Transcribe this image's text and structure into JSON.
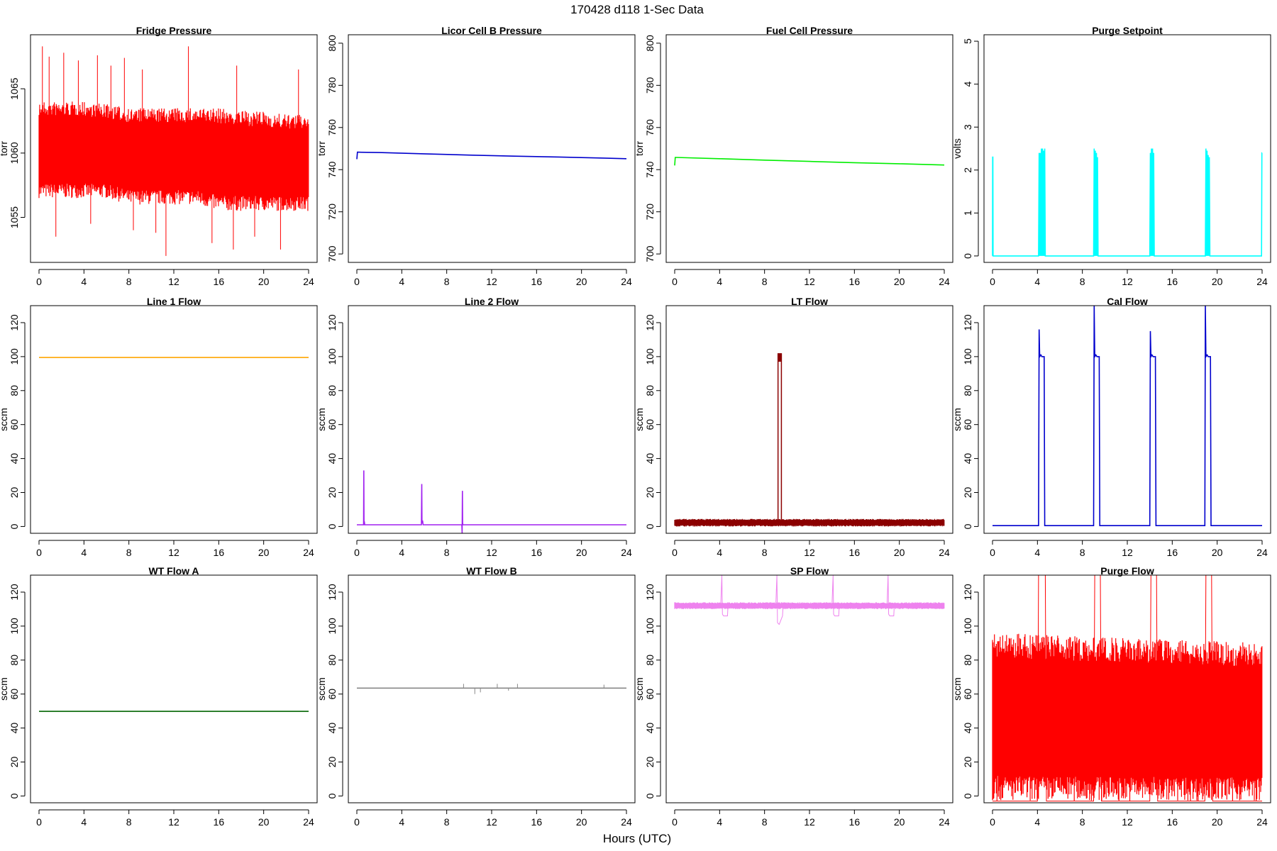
{
  "header": {
    "title": "170428    d118    1-Sec Data"
  },
  "footer": {
    "xlabel": "Hours (UTC)"
  },
  "chart_data": [
    {
      "type": "line",
      "title": "Fridge Pressure",
      "ylabel": "torr",
      "color": "#ff0000",
      "xlim": [
        0,
        24
      ],
      "ylim": [
        1051.5,
        1069.2
      ],
      "x_ticks": [
        0,
        4,
        8,
        12,
        16,
        20,
        24
      ],
      "y_ticks": [
        1055,
        1060,
        1065
      ],
      "x": [
        0,
        0.5,
        2,
        4,
        6,
        8,
        10,
        12,
        14,
        16,
        18,
        20,
        22,
        24
      ],
      "y": [
        1060,
        1060,
        1060,
        1060,
        1060,
        1059.5,
        1059.5,
        1059.5,
        1059.5,
        1059.5,
        1059.3,
        1059.3,
        1059.2,
        1059.2
      ],
      "band": {
        "low": [
          1056.5,
          1056.5,
          1056.5,
          1056.5,
          1056.5,
          1056,
          1056,
          1056,
          1056,
          1055.5,
          1055.5,
          1055.5,
          1055.5,
          1055.5
        ],
        "high": [
          1064,
          1064,
          1064,
          1064,
          1063.8,
          1063.5,
          1063.5,
          1063.5,
          1063.5,
          1063.5,
          1063.3,
          1063.2,
          1063,
          1063
        ]
      },
      "spikes": [
        [
          0.3,
          1068.3
        ],
        [
          0.9,
          1067.5
        ],
        [
          2.2,
          1067.8
        ],
        [
          3.5,
          1067.2
        ],
        [
          5.2,
          1067.6
        ],
        [
          6.4,
          1066.8
        ],
        [
          7.6,
          1067.4
        ],
        [
          9.2,
          1066.5
        ],
        [
          11.3,
          1052
        ],
        [
          13.3,
          1068.3
        ],
        [
          15.4,
          1053
        ],
        [
          17.3,
          1052.5
        ],
        [
          17.6,
          1066.8
        ],
        [
          21.5,
          1052.5
        ],
        [
          23.1,
          1066.5
        ],
        [
          1.5,
          1053.5
        ],
        [
          4.6,
          1054.5
        ],
        [
          8.4,
          1054
        ],
        [
          10.4,
          1053.8
        ],
        [
          19.2,
          1053.5
        ]
      ]
    },
    {
      "type": "line",
      "title": "Licor Cell B Pressure",
      "ylabel": "torr",
      "color": "#0000cd",
      "xlim": [
        0,
        24
      ],
      "ylim": [
        696,
        804
      ],
      "x_ticks": [
        0,
        4,
        8,
        12,
        16,
        20,
        24
      ],
      "y_ticks": [
        700,
        720,
        740,
        760,
        780,
        800
      ],
      "x": [
        0,
        0.05,
        0.15,
        2,
        6,
        10,
        14,
        18,
        22,
        24
      ],
      "y": [
        745,
        748.3,
        748.3,
        748.1,
        747.5,
        746.9,
        746.4,
        746,
        745.5,
        745.2
      ]
    },
    {
      "type": "line",
      "title": "Fuel Cell Pressure",
      "ylabel": "torr",
      "color": "#00ee00",
      "xlim": [
        0,
        24
      ],
      "ylim": [
        696,
        804
      ],
      "x_ticks": [
        0,
        4,
        8,
        12,
        16,
        20,
        24
      ],
      "y_ticks": [
        700,
        720,
        740,
        760,
        780,
        800
      ],
      "x": [
        0,
        0.05,
        0.15,
        4,
        8,
        12,
        16,
        20,
        24
      ],
      "y": [
        742,
        745.8,
        745.8,
        745.2,
        744.5,
        743.9,
        743.3,
        742.8,
        742.2
      ]
    },
    {
      "type": "line",
      "title": "Purge Setpoint",
      "ylabel": "volts",
      "color": "#00ffff",
      "xlim": [
        0,
        24
      ],
      "ylim": [
        -0.15,
        5.15
      ],
      "x_ticks": [
        0,
        4,
        8,
        12,
        16,
        20,
        24
      ],
      "y_ticks": [
        0,
        1,
        2,
        3,
        4,
        5
      ],
      "x": [
        0,
        0.01,
        0.03,
        0.05,
        4.1,
        4.15,
        4.2,
        4.25,
        4.3,
        4.35,
        4.4,
        4.45,
        4.5,
        4.55,
        4.6,
        4.65,
        4.7,
        4.75,
        9,
        9.05,
        9.1,
        9.15,
        9.2,
        9.25,
        9.3,
        9.35,
        9.4,
        9.45,
        14,
        14.05,
        14.1,
        14.15,
        14.2,
        14.25,
        14.3,
        14.35,
        14.4,
        14.45,
        18.95,
        19,
        19.05,
        19.1,
        19.15,
        19.2,
        19.25,
        19.3,
        19.35,
        23.95,
        23.98,
        24
      ],
      "y": [
        0,
        2.3,
        2.3,
        0,
        0,
        2.4,
        0,
        2.4,
        0,
        2.5,
        0,
        2.5,
        0,
        2.45,
        0,
        2.5,
        0,
        0,
        0,
        2.5,
        0,
        2.45,
        0,
        2.4,
        0,
        2.3,
        0,
        0,
        0,
        2.4,
        0,
        2.5,
        0,
        2.5,
        0,
        2.4,
        0,
        0,
        0,
        2.5,
        0,
        2.45,
        0,
        2.35,
        0,
        2.3,
        0,
        0,
        2.4,
        2.4
      ]
    },
    {
      "type": "line",
      "title": "Line 1 Flow",
      "ylabel": "sccm",
      "color": "#ffa500",
      "xlim": [
        0,
        24
      ],
      "ylim": [
        -4,
        130
      ],
      "x_ticks": [
        0,
        4,
        8,
        12,
        16,
        20,
        24
      ],
      "y_ticks": [
        0,
        20,
        40,
        60,
        80,
        100,
        120
      ],
      "x": [
        0,
        24
      ],
      "y": [
        99.5,
        99.5
      ]
    },
    {
      "type": "line",
      "title": "Line 2 Flow",
      "ylabel": "sccm",
      "color": "#a020f0",
      "xlim": [
        0,
        24
      ],
      "ylim": [
        -4,
        130
      ],
      "x_ticks": [
        0,
        4,
        8,
        12,
        16,
        20,
        24
      ],
      "y_ticks": [
        0,
        20,
        40,
        60,
        80,
        100,
        120
      ],
      "x": [
        0,
        0.6,
        0.62,
        0.64,
        0.66,
        0.7,
        5.75,
        5.78,
        5.8,
        5.85,
        5.9,
        6.0,
        9.35,
        9.37,
        9.4,
        9.42,
        9.44,
        9.5,
        24
      ],
      "y": [
        1,
        1,
        33,
        1.5,
        3,
        1,
        1,
        25,
        2,
        3.5,
        1,
        1,
        1,
        -4,
        21,
        2,
        1,
        1,
        1
      ]
    },
    {
      "type": "line",
      "title": "LT Flow",
      "ylabel": "sccm",
      "color": "#8b0000",
      "xlim": [
        0,
        24
      ],
      "ylim": [
        -4,
        130
      ],
      "x_ticks": [
        0,
        4,
        8,
        12,
        16,
        20,
        24
      ],
      "y_ticks": [
        0,
        20,
        40,
        60,
        80,
        100,
        120
      ],
      "x": [
        0,
        24
      ],
      "y": [
        2,
        2
      ],
      "band": {
        "low": [
          0,
          0
        ],
        "high": [
          4.5,
          4.5
        ]
      },
      "pulse": {
        "start": 9.2,
        "end": 9.5,
        "low": 97,
        "high": 102
      }
    },
    {
      "type": "line",
      "title": "Cal Flow",
      "ylabel": "sccm",
      "color": "#0000cd",
      "xlim": [
        0,
        24
      ],
      "ylim": [
        -4,
        130
      ],
      "x_ticks": [
        0,
        4,
        8,
        12,
        16,
        20,
        24
      ],
      "y_ticks": [
        0,
        20,
        40,
        60,
        80,
        100,
        120
      ],
      "x": [
        0,
        4.1,
        4.15,
        4.2,
        4.3,
        4.4,
        4.6,
        4.65,
        9.0,
        9.05,
        9.1,
        9.2,
        9.3,
        9.5,
        9.55,
        14.0,
        14.05,
        14.1,
        14.2,
        14.3,
        14.5,
        14.55,
        18.9,
        18.95,
        19.0,
        19.1,
        19.2,
        19.4,
        19.45,
        24
      ],
      "y": [
        0.5,
        0.5,
        116,
        100,
        101,
        100,
        100,
        0.5,
        0.5,
        130,
        100,
        101,
        100,
        100,
        0.5,
        0.5,
        115,
        100,
        101,
        100,
        100,
        0.5,
        0.5,
        130,
        100,
        101,
        100,
        100,
        0.5,
        0.5
      ]
    },
    {
      "type": "line",
      "title": "WT Flow A",
      "ylabel": "sccm",
      "color": "#006400",
      "xlim": [
        0,
        24
      ],
      "ylim": [
        -4,
        130
      ],
      "x_ticks": [
        0,
        4,
        8,
        12,
        16,
        20,
        24
      ],
      "y_ticks": [
        0,
        20,
        40,
        60,
        80,
        100,
        120
      ],
      "x": [
        0,
        24
      ],
      "y": [
        49.8,
        49.8
      ]
    },
    {
      "type": "line",
      "title": "WT Flow B",
      "ylabel": "sccm",
      "color": "#888888",
      "xlim": [
        0,
        24
      ],
      "ylim": [
        -4,
        130
      ],
      "x_ticks": [
        0,
        4,
        8,
        12,
        16,
        20,
        24
      ],
      "y_ticks": [
        0,
        20,
        40,
        60,
        80,
        100,
        120
      ],
      "x": [
        0,
        24
      ],
      "y": [
        63.5,
        63.5
      ],
      "spikes": [
        [
          9.5,
          66
        ],
        [
          10.5,
          60
        ],
        [
          11,
          61
        ],
        [
          12.5,
          66
        ],
        [
          13.5,
          62
        ],
        [
          14.3,
          66
        ],
        [
          22,
          65.5
        ]
      ]
    },
    {
      "type": "line",
      "title": "SP Flow",
      "ylabel": "sccm",
      "color": "#ee82ee",
      "xlim": [
        0,
        24
      ],
      "ylim": [
        -4,
        130
      ],
      "x_ticks": [
        0,
        4,
        8,
        12,
        16,
        20,
        24
      ],
      "y_ticks": [
        0,
        20,
        40,
        60,
        80,
        100,
        120
      ],
      "x": [
        0,
        4.1,
        4.2,
        4.25,
        4.35,
        4.7,
        4.75,
        9,
        9.1,
        9.15,
        9.3,
        9.6,
        9.65,
        14,
        14.1,
        14.15,
        14.25,
        14.6,
        14.65,
        18.9,
        19,
        19.05,
        19.15,
        19.5,
        19.55,
        24
      ],
      "y": [
        112,
        112,
        130,
        107,
        106,
        106,
        112,
        112,
        130,
        102,
        101,
        106,
        112,
        112,
        130,
        107,
        106,
        106,
        112,
        112,
        130,
        107,
        106,
        106,
        112,
        112
      ],
      "band": {
        "low": [
          110,
          110
        ],
        "high": [
          114,
          114
        ]
      }
    },
    {
      "type": "line",
      "title": "Purge Flow",
      "ylabel": "sccm",
      "color": "#ff0000",
      "xlim": [
        0,
        24
      ],
      "ylim": [
        -4,
        130
      ],
      "x_ticks": [
        0,
        4,
        8,
        12,
        16,
        20,
        24
      ],
      "y_ticks": [
        0,
        20,
        40,
        60,
        80,
        100,
        120
      ],
      "x": [
        0,
        4,
        4.1,
        4.7,
        4.8,
        9,
        9.1,
        9.6,
        9.7,
        14,
        14.1,
        14.6,
        14.7,
        18.9,
        19,
        19.5,
        19.6,
        24
      ],
      "y": [
        -3,
        -3,
        130,
        130,
        -3,
        -3,
        130,
        130,
        -3,
        -3,
        130,
        130,
        -3,
        -3,
        130,
        130,
        -3,
        -3
      ],
      "band": {
        "low": [
          -3,
          -3
        ],
        "high": [
          96,
          90
        ]
      }
    }
  ]
}
